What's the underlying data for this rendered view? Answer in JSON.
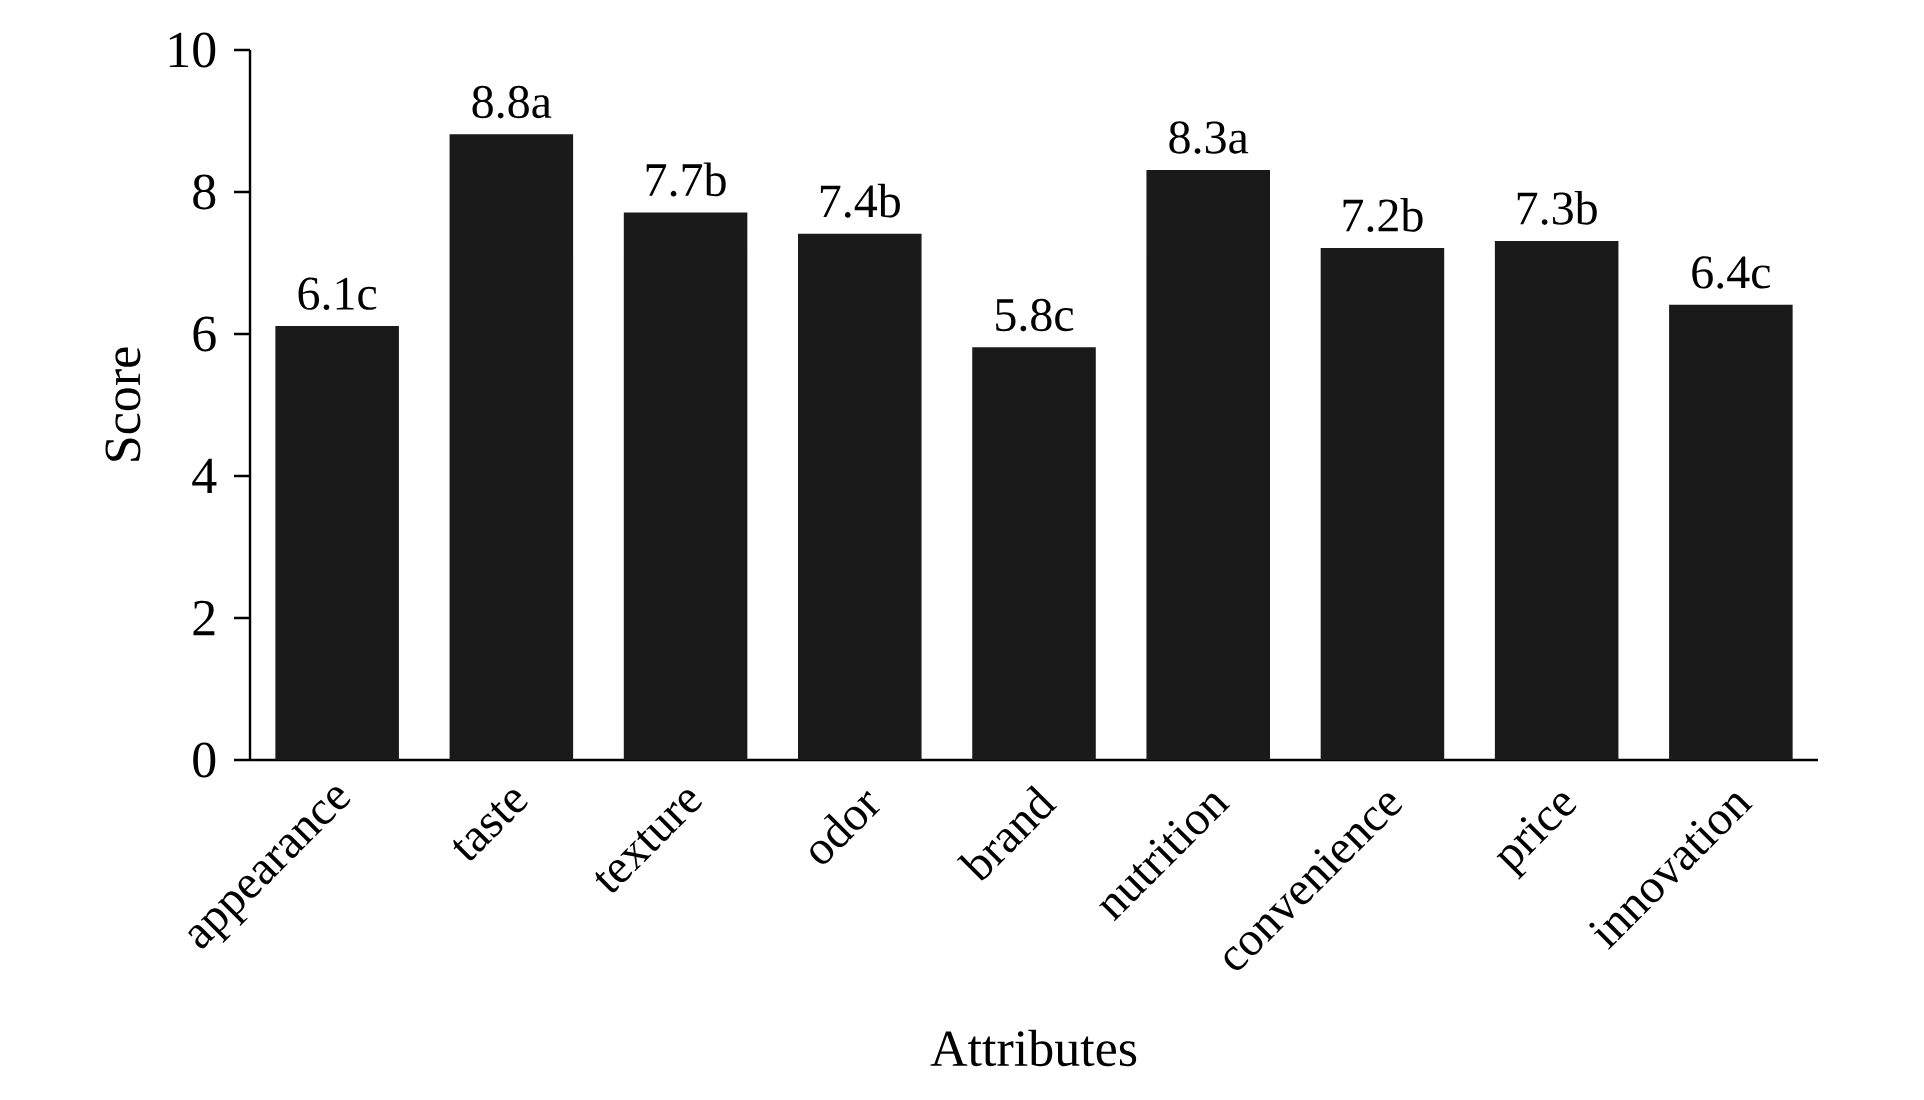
{
  "chart_data": {
    "type": "bar",
    "xlabel": "Attributes",
    "ylabel": "Score",
    "categories": [
      "appearance",
      "taste",
      "texture",
      "odor",
      "brand",
      "nutrition",
      "convenience",
      "price",
      "innovation"
    ],
    "values": [
      6.1,
      8.8,
      7.7,
      7.4,
      5.8,
      8.3,
      7.2,
      7.3,
      6.4
    ],
    "value_labels": [
      "6.1c",
      "8.8a",
      "7.7b",
      "7.4b",
      "5.8c",
      "8.3a",
      "7.2b",
      "7.3b",
      "6.4c"
    ],
    "color": "#1a1a1a",
    "ylim": [
      0,
      10
    ],
    "yticks": [
      0,
      2,
      4,
      6,
      8,
      10
    ]
  }
}
